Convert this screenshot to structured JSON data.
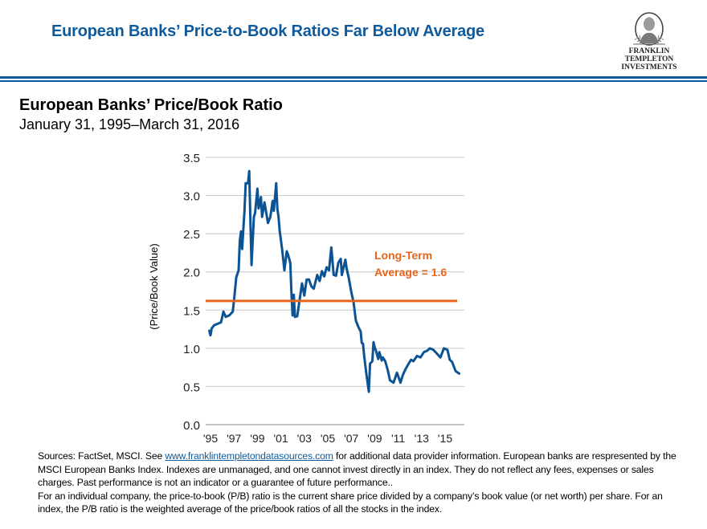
{
  "header": {
    "title": "European Banks’ Price-to-Book Ratios Far Below Average",
    "logo": {
      "icon": "franklin-portrait-icon",
      "line1": "FRANKLIN TEMPLETON",
      "line2": "INVESTMENTS"
    }
  },
  "colors": {
    "brand_blue": "#0e5a9c",
    "series_blue": "#0b5394",
    "average_orange": "#e8651a",
    "grid": "#c8c8c8"
  },
  "chart_data": {
    "type": "line",
    "title": "European Banks’ Price/Book Ratio",
    "subtitle": "January 31, 1995–March 31, 2016",
    "xlabel": "",
    "ylabel": "(Price/Book Value)",
    "ylim": [
      0,
      3.5
    ],
    "xlim": [
      1995,
      2017
    ],
    "grid": true,
    "yticks": [
      "0.0",
      "0.5",
      "1.0",
      "1.5",
      "2.0",
      "2.5",
      "3.0",
      "3.5"
    ],
    "ytick_values": [
      0,
      0.5,
      1.0,
      1.5,
      2.0,
      2.5,
      3.0,
      3.5
    ],
    "xticks": [
      "'95",
      "'97",
      "'99",
      "'01",
      "'03",
      "'05",
      "'07",
      "'09",
      "'11",
      "'13",
      "'15"
    ],
    "xtick_values": [
      1995,
      1997,
      1999,
      2001,
      2003,
      2005,
      2007,
      2009,
      2011,
      2013,
      2015
    ],
    "series": [
      {
        "name": "European Banks’ Price/Book Ratio",
        "x": [
          1994.9,
          1995.0,
          1995.1,
          1995.3,
          1995.6,
          1995.9,
          1996.1,
          1996.3,
          1996.6,
          1996.9,
          1997.0,
          1997.2,
          1997.4,
          1997.5,
          1997.6,
          1997.7,
          1997.8,
          1997.9,
          1998.0,
          1998.2,
          1998.3,
          1998.4,
          1998.5,
          1998.7,
          1998.8,
          1999.0,
          1999.1,
          1999.3,
          1999.4,
          1999.6,
          1999.9,
          2000.1,
          2000.3,
          2000.4,
          2000.6,
          2000.7,
          2000.8,
          2000.9,
          2001.1,
          2001.3,
          2001.5,
          2001.6,
          2001.8,
          2001.9,
          2002.0,
          2002.1,
          2002.2,
          2002.4,
          2002.6,
          2002.8,
          2003.0,
          2003.2,
          2003.4,
          2003.6,
          2003.8,
          2004.1,
          2004.3,
          2004.5,
          2004.7,
          2004.9,
          2005.1,
          2005.3,
          2005.5,
          2005.7,
          2005.9,
          2006.1,
          2006.2,
          2006.5,
          2006.6,
          2006.8,
          2007.0,
          2007.2,
          2007.4,
          2007.6,
          2007.8,
          2007.9,
          2008.0,
          2008.1,
          2008.3,
          2008.5,
          2008.6,
          2008.8,
          2008.9,
          2009.0,
          2009.1,
          2009.3,
          2009.4,
          2009.6,
          2009.7,
          2009.9,
          2010.1,
          2010.3,
          2010.6,
          2010.9,
          2011.2,
          2011.4,
          2011.6,
          2011.9,
          2012.1,
          2012.3,
          2012.6,
          2012.9,
          2013.2,
          2013.5,
          2013.7,
          2014.0,
          2014.3,
          2014.6,
          2014.9,
          2015.2,
          2015.4,
          2015.6,
          2015.9,
          2016.2
        ],
        "values": [
          1.23,
          1.17,
          1.26,
          1.3,
          1.32,
          1.34,
          1.48,
          1.41,
          1.43,
          1.48,
          1.62,
          1.93,
          2.02,
          2.41,
          2.53,
          2.3,
          2.56,
          2.8,
          3.16,
          3.16,
          3.32,
          2.7,
          2.09,
          2.72,
          2.77,
          3.09,
          2.83,
          2.98,
          2.72,
          2.91,
          2.64,
          2.72,
          2.93,
          2.8,
          3.16,
          2.83,
          2.72,
          2.54,
          2.3,
          2.02,
          2.27,
          2.23,
          2.12,
          1.74,
          1.43,
          1.7,
          1.41,
          1.42,
          1.64,
          1.85,
          1.69,
          1.9,
          1.9,
          1.81,
          1.78,
          1.96,
          1.88,
          2.01,
          1.94,
          2.06,
          2.02,
          2.32,
          1.96,
          1.95,
          2.12,
          2.17,
          1.96,
          2.16,
          2.05,
          1.91,
          1.74,
          1.6,
          1.36,
          1.28,
          1.22,
          1.07,
          1.06,
          0.9,
          0.65,
          0.43,
          0.8,
          0.83,
          1.08,
          1.01,
          0.97,
          0.86,
          0.95,
          0.84,
          0.88,
          0.83,
          0.72,
          0.58,
          0.55,
          0.68,
          0.55,
          0.65,
          0.72,
          0.8,
          0.85,
          0.83,
          0.9,
          0.88,
          0.95,
          0.97,
          1.0,
          0.98,
          0.93,
          0.88,
          1.0,
          0.98,
          0.85,
          0.82,
          0.7,
          0.67
        ]
      }
    ],
    "reference_line": {
      "name": "Long-Term Average",
      "value": 1.62
    },
    "annotations": [
      {
        "text_line1": "Long-Term",
        "text_line2": "Average = 1.6"
      }
    ]
  },
  "footnote": {
    "prefix": "Sources: FactSet, MSCI. See ",
    "link_text": "www.franklintempletondatasources.com",
    "suffix": " for additional data provider information. European banks are respresented by the MSCI European Banks Index. Indexes are unmanaged, and one cannot invest directly in an index. They do not reflect any fees, expenses or sales charges. Past performance is not an indicator or a guarantee of future performance..",
    "definition": "For an individual company, the price-to-book (P/B) ratio is the current share price divided by a company’s book value (or net worth) per share. For an index, the P/B ratio is the weighted average of the price/book ratios of all the stocks in the index."
  }
}
